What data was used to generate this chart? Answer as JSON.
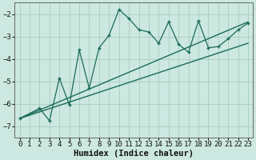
{
  "xlabel": "Humidex (Indice chaleur)",
  "bg_color": "#cce8e0",
  "grid_color": "#aaccbf",
  "line_color": "#1a6b5a",
  "xlim": [
    -0.5,
    23.5
  ],
  "ylim": [
    -7.5,
    -1.5
  ],
  "yticks": [
    -7,
    -6,
    -5,
    -4,
    -3,
    -2
  ],
  "xticks": [
    0,
    1,
    2,
    3,
    4,
    5,
    6,
    7,
    8,
    9,
    10,
    11,
    12,
    13,
    14,
    15,
    16,
    17,
    18,
    19,
    20,
    21,
    22,
    23
  ],
  "zigzag_x": [
    0,
    2,
    3,
    4,
    5,
    6,
    7,
    8,
    9,
    10,
    11,
    12,
    13,
    14,
    15,
    16,
    17,
    18,
    19,
    20,
    21,
    22,
    23
  ],
  "zigzag_y": [
    -6.65,
    -6.2,
    -6.75,
    -4.85,
    -6.05,
    -3.6,
    -5.3,
    -3.5,
    -2.95,
    -1.8,
    -2.2,
    -2.7,
    -2.8,
    -3.3,
    -2.35,
    -3.35,
    -3.7,
    -2.3,
    -3.5,
    -3.45,
    -3.1,
    -2.7,
    -2.4
  ],
  "line1_x": [
    0,
    23
  ],
  "line1_y": [
    -6.65,
    -2.35
  ],
  "line2_x": [
    0,
    23
  ],
  "line2_y": [
    -6.65,
    -3.3
  ],
  "tick_fontsize": 6.5,
  "xlabel_fontsize": 7.5
}
